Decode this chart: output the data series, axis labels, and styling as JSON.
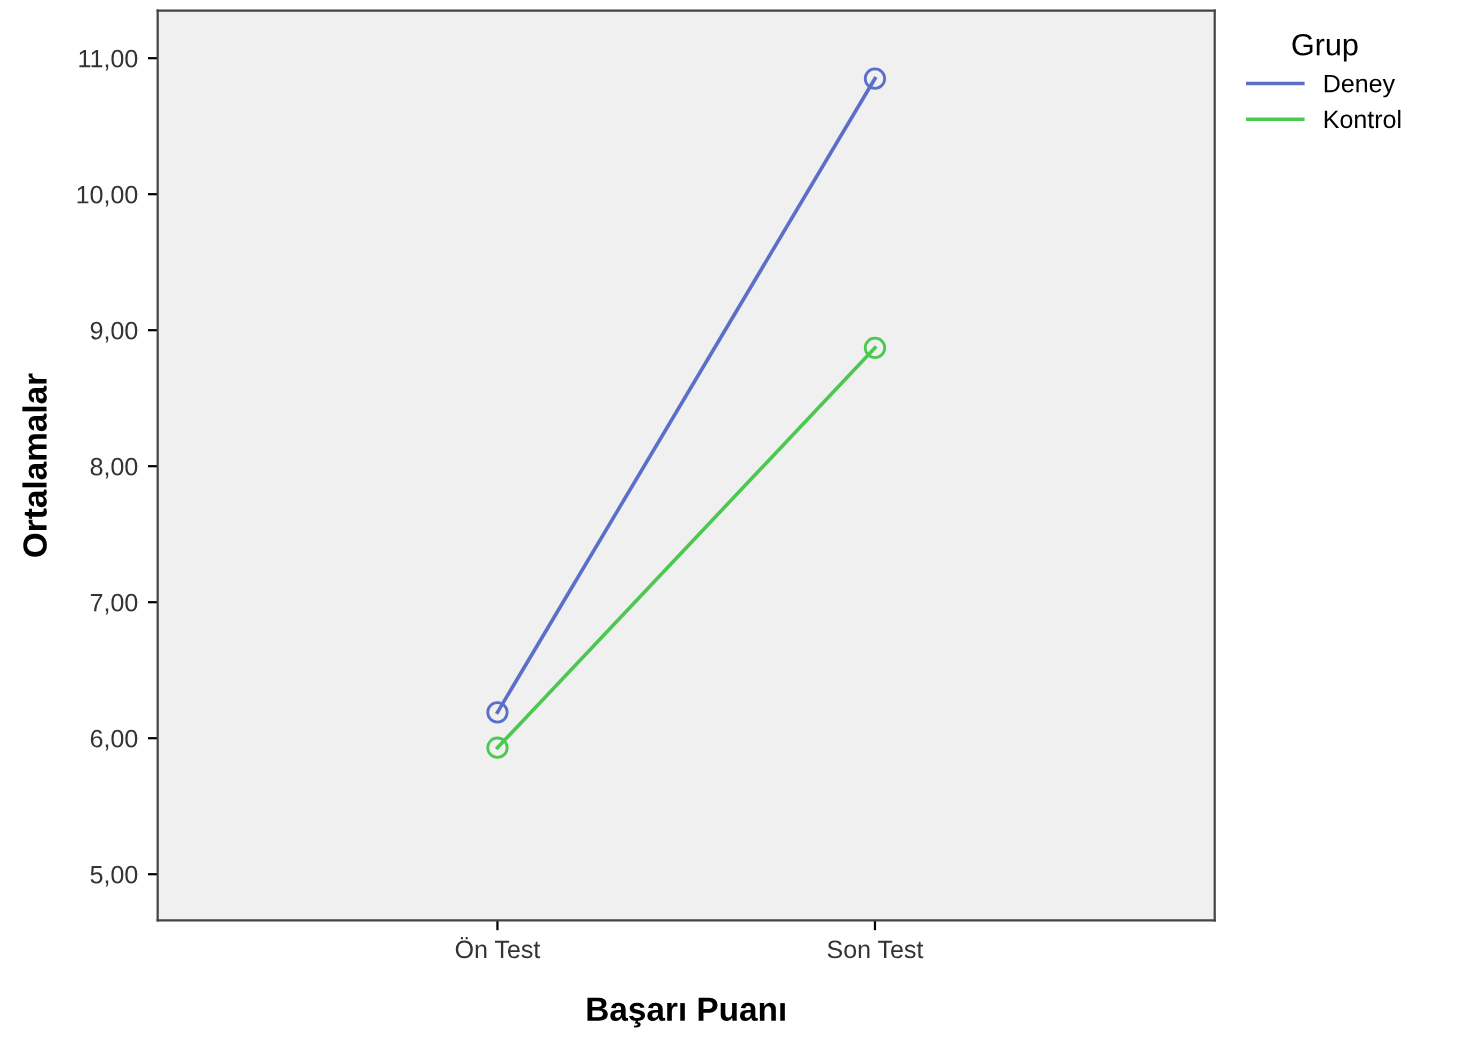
{
  "chart_data": {
    "type": "line",
    "xlabel": "Başarı Puanı",
    "ylabel": "Ortalamalar",
    "legend_title": "Grup",
    "categories": [
      "Ön Test",
      "Son Test"
    ],
    "series": [
      {
        "name": "Deney",
        "color": "#5b6fc8",
        "values": [
          6.19,
          10.85
        ]
      },
      {
        "name": "Kontrol",
        "color": "#4cc850",
        "values": [
          5.93,
          8.87
        ]
      }
    ],
    "ylim": [
      4.66,
      11.35
    ],
    "yticks": [
      {
        "value": 5,
        "label": "5,00"
      },
      {
        "value": 6,
        "label": "6,00"
      },
      {
        "value": 7,
        "label": "7,00"
      },
      {
        "value": 8,
        "label": "8,00"
      },
      {
        "value": 9,
        "label": "9,00"
      },
      {
        "value": 10,
        "label": "10,00"
      },
      {
        "value": 11,
        "label": "11,00"
      }
    ],
    "grid": false,
    "legend": "top right",
    "marker": "circle",
    "line_style": "solid"
  }
}
